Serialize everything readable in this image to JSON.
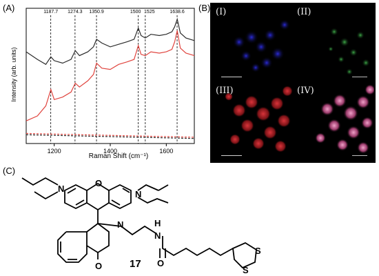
{
  "panel_a": {
    "label": "(A)"
  },
  "panel_b": {
    "label": "(B)",
    "quadrants": [
      "(I)",
      "(II)",
      "(III)",
      "(IV)"
    ]
  },
  "panel_c": {
    "label": "(C)",
    "compound_number": "17",
    "atoms": {
      "o": "O",
      "n1": "N",
      "n2": "N",
      "n3": "N",
      "h": "H",
      "o_carbonyl": "O",
      "o_amide": "O",
      "s1": "S",
      "s2": "S"
    }
  },
  "chart_data": {
    "type": "line",
    "xlabel": "Raman Shift (cm⁻¹)",
    "ylabel": "Intensity (arb. units)",
    "xlim": [
      1100,
      1700
    ],
    "ylim": [
      0,
      100
    ],
    "x_ticks": [
      1200,
      1400,
      1600
    ],
    "peak_labels": [
      1187.7,
      1274.3,
      1350.9,
      1500,
      1525,
      1638.6
    ],
    "peak_label_text": [
      "1187.7",
      "1274.3",
      "1350.9",
      "1500",
      "1525",
      "1638.6"
    ],
    "series": [
      {
        "color": "#2a2a2a",
        "style": "solid",
        "x": [
          1100,
          1140,
          1170,
          1188,
          1200,
          1230,
          1260,
          1275,
          1290,
          1320,
          1340,
          1351,
          1370,
          1400,
          1430,
          1460,
          1485,
          1500,
          1510,
          1525,
          1545,
          1575,
          1600,
          1620,
          1630,
          1639,
          1650,
          1670,
          1700
        ],
        "y": [
          73,
          67,
          63,
          69,
          66,
          64,
          67,
          74,
          70,
          73,
          77,
          83,
          80,
          77,
          79,
          81,
          83,
          92,
          86,
          84,
          87,
          86,
          87,
          89,
          93,
          99,
          88,
          84,
          82
        ]
      },
      {
        "color": "#e0443e",
        "style": "solid",
        "x": [
          1100,
          1140,
          1170,
          1188,
          1200,
          1230,
          1260,
          1275,
          1290,
          1320,
          1340,
          1351,
          1370,
          1400,
          1430,
          1460,
          1485,
          1500,
          1510,
          1525,
          1545,
          1575,
          1600,
          1620,
          1630,
          1639,
          1650,
          1670,
          1700
        ],
        "y": [
          18,
          22,
          30,
          43,
          35,
          37,
          41,
          48,
          45,
          50,
          55,
          64,
          60,
          59,
          63,
          65,
          67,
          78,
          71,
          70,
          73,
          72,
          73,
          75,
          81,
          90,
          76,
          72,
          70
        ]
      },
      {
        "color": "#2a2a2a",
        "style": "dashed",
        "x": [
          1100,
          1300,
          1500,
          1700
        ],
        "y": [
          7,
          6,
          5,
          4
        ]
      },
      {
        "color": "#e0443e",
        "style": "dashed",
        "x": [
          1100,
          1300,
          1500,
          1700
        ],
        "y": [
          8,
          7,
          6,
          5
        ]
      }
    ]
  }
}
